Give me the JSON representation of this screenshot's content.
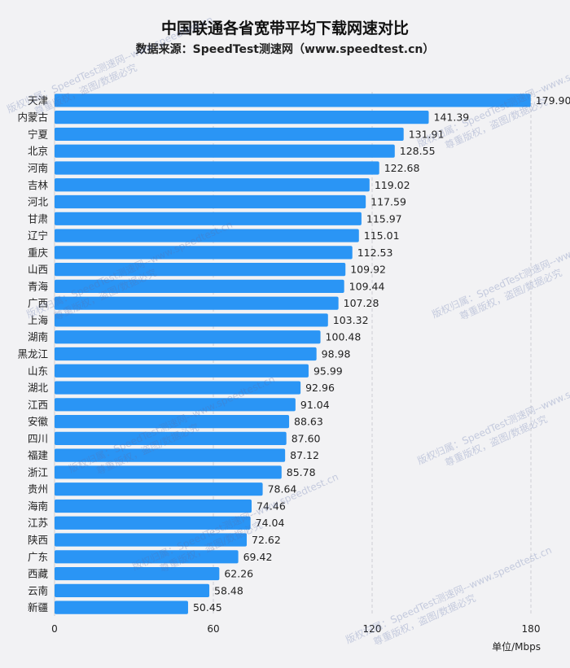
{
  "title": "中国联通各省宽带平均下载网速对比",
  "subtitle": "数据来源：SpeedTest测速网（www.speedtest.cn）",
  "unit_label": "单位/Mbps",
  "watermark": {
    "line1": "版权归属：SpeedTest测速网--www.speedtest.cn",
    "line2": "尊重版权，盗图/数据必究"
  },
  "colors": {
    "bar": "#2a95f5",
    "grid": "#cfcfd4",
    "text": "#222222"
  },
  "chart_data": {
    "type": "bar",
    "orientation": "horizontal",
    "categories": [
      "天津",
      "内蒙古",
      "宁夏",
      "北京",
      "河南",
      "吉林",
      "河北",
      "甘肃",
      "辽宁",
      "重庆",
      "山西",
      "青海",
      "广西",
      "上海",
      "湖南",
      "黑龙江",
      "山东",
      "湖北",
      "江西",
      "安徽",
      "四川",
      "福建",
      "浙江",
      "贵州",
      "海南",
      "江苏",
      "陕西",
      "广东",
      "西藏",
      "云南",
      "新疆"
    ],
    "values": [
      179.9,
      141.39,
      131.91,
      128.55,
      122.68,
      119.02,
      117.59,
      115.97,
      115.01,
      112.53,
      109.92,
      109.44,
      107.28,
      103.32,
      100.48,
      98.98,
      95.99,
      92.96,
      91.04,
      88.63,
      87.6,
      87.12,
      85.78,
      78.64,
      74.46,
      74.04,
      72.62,
      69.42,
      62.26,
      58.48,
      50.45
    ],
    "value_labels": [
      "179.90",
      "141.39",
      "131.91",
      "128.55",
      "122.68",
      "119.02",
      "117.59",
      "115.97",
      "115.01",
      "112.53",
      "109.92",
      "109.44",
      "107.28",
      "103.32",
      "100.48",
      "98.98",
      "95.99",
      "92.96",
      "91.04",
      "88.63",
      "87.60",
      "87.12",
      "85.78",
      "78.64",
      "74.46",
      "74.04",
      "72.62",
      "69.42",
      "62.26",
      "58.48",
      "50.45"
    ],
    "xticks": [
      0,
      60,
      120,
      180
    ],
    "xlim": [
      0,
      180
    ],
    "grid": true,
    "title": "中国联通各省宽带平均下载网速对比"
  }
}
